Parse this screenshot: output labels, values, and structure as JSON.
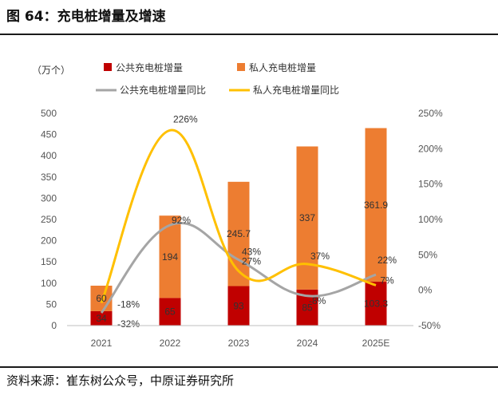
{
  "header": {
    "title": "图 64：充电桩增量及增速"
  },
  "footer": {
    "source": "资料来源：崔东树公众号，中原证券研究所"
  },
  "chart_data": {
    "type": "bar",
    "stacked": true,
    "categories": [
      "2021",
      "2022",
      "2023",
      "2024",
      "2025E"
    ],
    "y_unit_label": "（万个）",
    "ylim": [
      0,
      500
    ],
    "y_ticks": [
      0,
      50,
      100,
      150,
      200,
      250,
      300,
      350,
      400,
      450,
      500
    ],
    "y2lim": [
      -50,
      250
    ],
    "y2_ticks": [
      "-50%",
      "0%",
      "50%",
      "100%",
      "150%",
      "200%",
      "250%"
    ],
    "y2_tick_values": [
      -50,
      0,
      50,
      100,
      150,
      200,
      250
    ],
    "grid": false,
    "legend_position": "top",
    "series": [
      {
        "name": "公共充电桩增量",
        "type": "bar",
        "axis": "left",
        "color": "#C00000",
        "values": [
          34,
          65,
          93,
          85,
          103.3
        ],
        "labels": [
          "34",
          "65",
          "93",
          "85",
          "103.3"
        ]
      },
      {
        "name": "私人充电桩增量",
        "type": "bar",
        "axis": "left",
        "color": "#ED7D31",
        "values": [
          60,
          194,
          245.7,
          337,
          361.9
        ],
        "labels": [
          "60",
          "194",
          "245.7",
          "337",
          "361.9"
        ]
      },
      {
        "name": "公共充电桩增量同比",
        "type": "line",
        "axis": "right",
        "color": "#A5A5A5",
        "values": [
          -32,
          92,
          43,
          -8,
          22
        ],
        "labels": [
          "-32%",
          "92%",
          "43%",
          "-8%",
          "22%"
        ]
      },
      {
        "name": "私人充电桩增量同比",
        "type": "line",
        "axis": "right",
        "color": "#FFC000",
        "values": [
          -18,
          226,
          27,
          37,
          7
        ],
        "labels": [
          "-18%",
          "226%",
          "27%",
          "37%",
          "7%"
        ]
      }
    ]
  }
}
